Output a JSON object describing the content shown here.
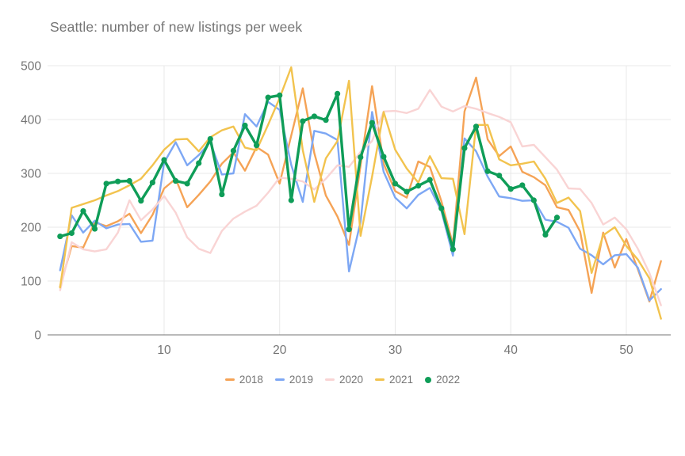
{
  "title": "Seattle: number of new listings per week",
  "colors": {
    "grid": "#e8e8e8",
    "baseline": "#757575",
    "tick_text": "#757575",
    "title_text": "#757575",
    "background": "#ffffff"
  },
  "chart_data": {
    "type": "line",
    "title": "Seattle: number of new listings per week",
    "xlabel": "",
    "ylabel": "",
    "xlim": [
      1,
      53
    ],
    "ylim": [
      0,
      500
    ],
    "xticks": [
      10,
      20,
      30,
      40,
      50
    ],
    "yticks": [
      0,
      100,
      200,
      300,
      400,
      500
    ],
    "grid": "on",
    "legend_position": "bottom",
    "x_is_week_number": true,
    "x_start": 1,
    "series": [
      {
        "name": "2018",
        "color": "#f5a356",
        "marker": "dash",
        "values": [
          90,
          165,
          162,
          209,
          202,
          211,
          225,
          189,
          223,
          272,
          290,
          237,
          260,
          285,
          318,
          339,
          305,
          349,
          335,
          281,
          370,
          458,
          338,
          259,
          220,
          167,
          315,
          462,
          318,
          267,
          255,
          322,
          312,
          248,
          168,
          415,
          478,
          363,
          332,
          350,
          303,
          293,
          278,
          237,
          232,
          192,
          78,
          190,
          125,
          178,
          122,
          62,
          137
        ]
      },
      {
        "name": "2019",
        "color": "#7da7f4",
        "marker": "dash",
        "values": [
          120,
          222,
          190,
          212,
          198,
          205,
          206,
          173,
          175,
          320,
          358,
          315,
          334,
          358,
          298,
          300,
          410,
          387,
          433,
          418,
          316,
          247,
          379,
          374,
          362,
          118,
          210,
          414,
          303,
          255,
          235,
          260,
          273,
          230,
          147,
          365,
          341,
          294,
          257,
          254,
          249,
          250,
          214,
          210,
          199,
          160,
          148,
          131,
          148,
          150,
          125,
          64,
          85
        ]
      },
      {
        "name": "2020",
        "color": "#f9d4d4",
        "marker": "dash",
        "values": [
          83,
          172,
          159,
          155,
          159,
          190,
          250,
          213,
          233,
          258,
          227,
          181,
          160,
          152,
          193,
          216,
          229,
          240,
          264,
          292,
          290,
          285,
          270,
          290,
          315,
          312,
          340,
          360,
          415,
          416,
          412,
          420,
          455,
          424,
          415,
          425,
          420,
          412,
          405,
          395,
          350,
          353,
          330,
          307,
          272,
          271,
          245,
          205,
          218,
          196,
          160,
          115,
          55
        ]
      },
      {
        "name": "2021",
        "color": "#f2c34e",
        "marker": "dash",
        "values": [
          88,
          236,
          243,
          250,
          259,
          267,
          278,
          290,
          315,
          344,
          363,
          364,
          341,
          367,
          380,
          387,
          348,
          343,
          390,
          440,
          497,
          343,
          247,
          328,
          360,
          472,
          184,
          294,
          414,
          344,
          309,
          283,
          332,
          291,
          290,
          187,
          390,
          390,
          326,
          315,
          318,
          322,
          290,
          245,
          255,
          230,
          115,
          185,
          200,
          165,
          140,
          105,
          30
        ]
      },
      {
        "name": "2022",
        "color": "#0f9d58",
        "marker": "circle",
        "values": [
          183,
          189,
          230,
          197,
          281,
          285,
          286,
          249,
          283,
          325,
          286,
          281,
          319,
          364,
          261,
          342,
          389,
          352,
          441,
          445,
          250,
          397,
          406,
          399,
          448,
          196,
          330,
          394,
          331,
          281,
          266,
          277,
          288,
          235,
          159,
          347,
          387,
          304,
          296,
          271,
          278,
          250,
          186,
          218
        ]
      }
    ]
  }
}
